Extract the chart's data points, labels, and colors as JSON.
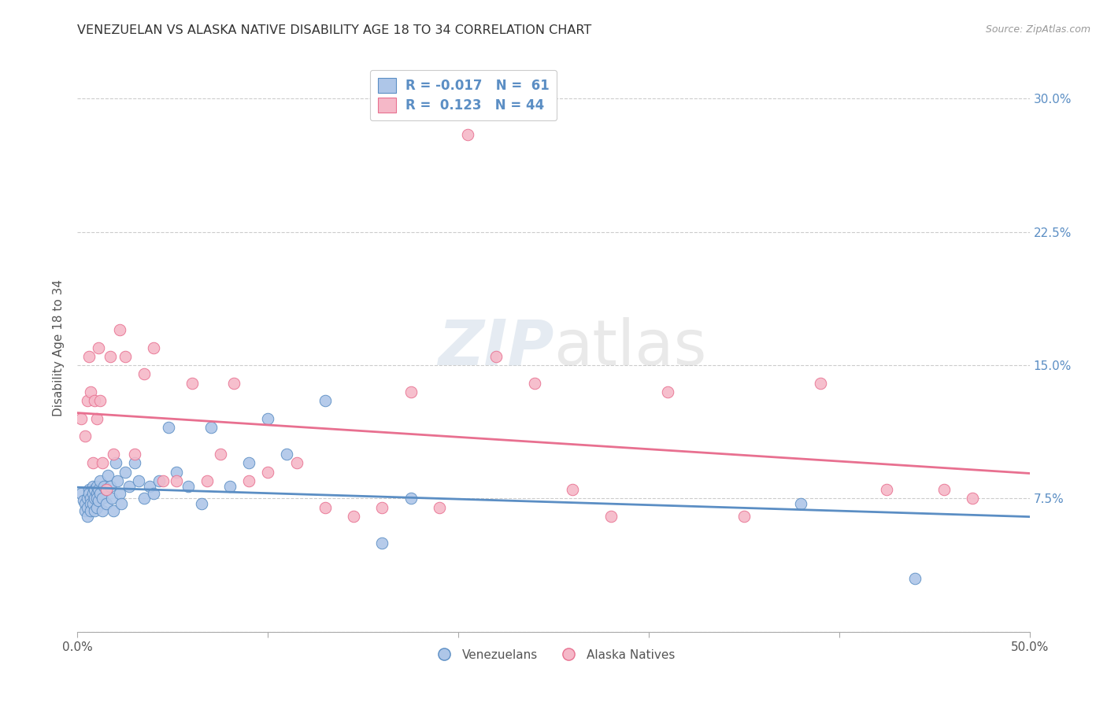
{
  "title": "VENEZUELAN VS ALASKA NATIVE DISABILITY AGE 18 TO 34 CORRELATION CHART",
  "source": "Source: ZipAtlas.com",
  "ylabel": "Disability Age 18 to 34",
  "xlim": [
    0.0,
    0.5
  ],
  "ylim": [
    0.0,
    0.32
  ],
  "xticks": [
    0.0,
    0.1,
    0.2,
    0.3,
    0.4,
    0.5
  ],
  "xticklabels": [
    "0.0%",
    "",
    "",
    "",
    "",
    "50.0%"
  ],
  "yticks": [
    0.0,
    0.075,
    0.15,
    0.225,
    0.3
  ],
  "yticklabels_right": [
    "",
    "7.5%",
    "15.0%",
    "22.5%",
    "30.0%"
  ],
  "blue_R": "-0.017",
  "blue_N": "61",
  "pink_R": "0.123",
  "pink_N": "44",
  "blue_fill": "#aec6e8",
  "pink_fill": "#f5b8c8",
  "blue_edge": "#5b8ec4",
  "pink_edge": "#e87090",
  "blue_line": "#5b8ec4",
  "pink_line": "#e87090",
  "legend_label_blue": "Venezuelans",
  "legend_label_pink": "Alaska Natives",
  "grid_color": "#cccccc",
  "title_color": "#333333",
  "tick_color": "#555555",
  "right_tick_color": "#5b8ec4",
  "venezuelan_x": [
    0.002,
    0.003,
    0.004,
    0.004,
    0.005,
    0.005,
    0.005,
    0.006,
    0.006,
    0.007,
    0.007,
    0.007,
    0.008,
    0.008,
    0.008,
    0.009,
    0.009,
    0.009,
    0.01,
    0.01,
    0.01,
    0.01,
    0.011,
    0.011,
    0.012,
    0.012,
    0.013,
    0.013,
    0.014,
    0.015,
    0.015,
    0.016,
    0.017,
    0.018,
    0.019,
    0.02,
    0.021,
    0.022,
    0.023,
    0.025,
    0.027,
    0.03,
    0.032,
    0.035,
    0.038,
    0.04,
    0.043,
    0.048,
    0.052,
    0.058,
    0.065,
    0.07,
    0.08,
    0.09,
    0.1,
    0.11,
    0.13,
    0.16,
    0.175,
    0.38,
    0.44
  ],
  "venezuelan_y": [
    0.078,
    0.074,
    0.072,
    0.068,
    0.075,
    0.07,
    0.065,
    0.08,
    0.078,
    0.075,
    0.072,
    0.068,
    0.082,
    0.078,
    0.072,
    0.08,
    0.075,
    0.068,
    0.082,
    0.078,
    0.075,
    0.07,
    0.08,
    0.074,
    0.085,
    0.078,
    0.075,
    0.068,
    0.082,
    0.08,
    0.072,
    0.088,
    0.082,
    0.075,
    0.068,
    0.095,
    0.085,
    0.078,
    0.072,
    0.09,
    0.082,
    0.095,
    0.085,
    0.075,
    0.082,
    0.078,
    0.085,
    0.115,
    0.09,
    0.082,
    0.072,
    0.115,
    0.082,
    0.095,
    0.12,
    0.1,
    0.13,
    0.05,
    0.075,
    0.072,
    0.03
  ],
  "alaska_x": [
    0.002,
    0.004,
    0.005,
    0.006,
    0.007,
    0.008,
    0.009,
    0.01,
    0.011,
    0.012,
    0.013,
    0.015,
    0.017,
    0.019,
    0.022,
    0.025,
    0.03,
    0.035,
    0.04,
    0.045,
    0.052,
    0.06,
    0.068,
    0.075,
    0.082,
    0.09,
    0.1,
    0.115,
    0.13,
    0.145,
    0.16,
    0.175,
    0.19,
    0.205,
    0.22,
    0.24,
    0.26,
    0.28,
    0.31,
    0.35,
    0.39,
    0.425,
    0.455,
    0.47
  ],
  "alaska_y": [
    0.12,
    0.11,
    0.13,
    0.155,
    0.135,
    0.095,
    0.13,
    0.12,
    0.16,
    0.13,
    0.095,
    0.08,
    0.155,
    0.1,
    0.17,
    0.155,
    0.1,
    0.145,
    0.16,
    0.085,
    0.085,
    0.14,
    0.085,
    0.1,
    0.14,
    0.085,
    0.09,
    0.095,
    0.07,
    0.065,
    0.07,
    0.135,
    0.07,
    0.28,
    0.155,
    0.14,
    0.08,
    0.065,
    0.135,
    0.065,
    0.14,
    0.08,
    0.08,
    0.075
  ]
}
